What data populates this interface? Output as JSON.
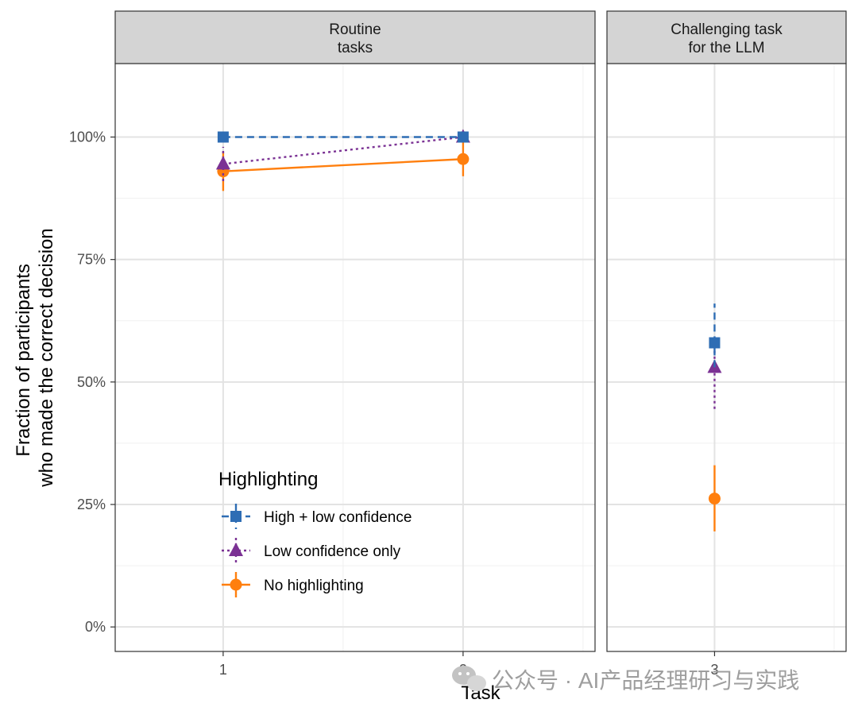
{
  "chart_data": {
    "type": "scatter",
    "xlabel": "Task",
    "ylabel_lines": [
      "Fraction of participants",
      "who made the correct decision"
    ],
    "y_ticks": [
      {
        "value": 0,
        "label": "0%"
      },
      {
        "value": 0.25,
        "label": "25%"
      },
      {
        "value": 0.5,
        "label": "50%"
      },
      {
        "value": 0.75,
        "label": "75%"
      },
      {
        "value": 1,
        "label": "100%"
      }
    ],
    "ylim": [
      -0.05,
      1.15
    ],
    "grid": true,
    "facets": [
      {
        "title_lines": [
          "Routine",
          "tasks"
        ],
        "x_ticks": [
          "1",
          "2"
        ],
        "xlim": [
          0.55,
          2.55
        ]
      },
      {
        "title_lines": [
          "Challenging task",
          "for the LLM"
        ],
        "x_ticks": [
          "3"
        ],
        "xlim": [
          2.55,
          3.55
        ]
      }
    ],
    "legend": {
      "title": "Highlighting",
      "placement": "bottom-left inside routine panel"
    },
    "series": [
      {
        "name": "High + low confidence",
        "color": "#2E6DB4",
        "shape": "square",
        "linetype": "dashed",
        "points": [
          {
            "task": "1",
            "facet": 0,
            "x": 1,
            "y": 1.0,
            "lo": 1.0,
            "hi": 1.0
          },
          {
            "task": "2",
            "facet": 0,
            "x": 2,
            "y": 1.0,
            "lo": 1.0,
            "hi": 1.0
          },
          {
            "task": "3",
            "facet": 1,
            "x": 3,
            "y": 0.58,
            "lo": 0.53,
            "hi": 0.66
          }
        ]
      },
      {
        "name": "Low confidence only",
        "color": "#7B3294",
        "shape": "triangle",
        "linetype": "dotted",
        "points": [
          {
            "task": "1",
            "facet": 0,
            "x": 1,
            "y": 0.945,
            "lo": 0.91,
            "hi": 0.98
          },
          {
            "task": "2",
            "facet": 0,
            "x": 2,
            "y": 1.0,
            "lo": 1.0,
            "hi": 1.0
          },
          {
            "task": "3",
            "facet": 1,
            "x": 3,
            "y": 0.53,
            "lo": 0.445,
            "hi": 0.565
          }
        ]
      },
      {
        "name": "No highlighting",
        "color": "#FF7F0E",
        "shape": "circle",
        "linetype": "solid",
        "points": [
          {
            "task": "1",
            "facet": 0,
            "x": 1,
            "y": 0.93,
            "lo": 0.89,
            "hi": 0.97
          },
          {
            "task": "2",
            "facet": 0,
            "x": 2,
            "y": 0.955,
            "lo": 0.92,
            "hi": 1.0
          },
          {
            "task": "3",
            "facet": 1,
            "x": 3,
            "y": 0.262,
            "lo": 0.195,
            "hi": 0.33
          }
        ]
      }
    ]
  },
  "watermark": {
    "text": "公众号 · AI产品经理研习与实践",
    "icon": "wechat-icon"
  }
}
